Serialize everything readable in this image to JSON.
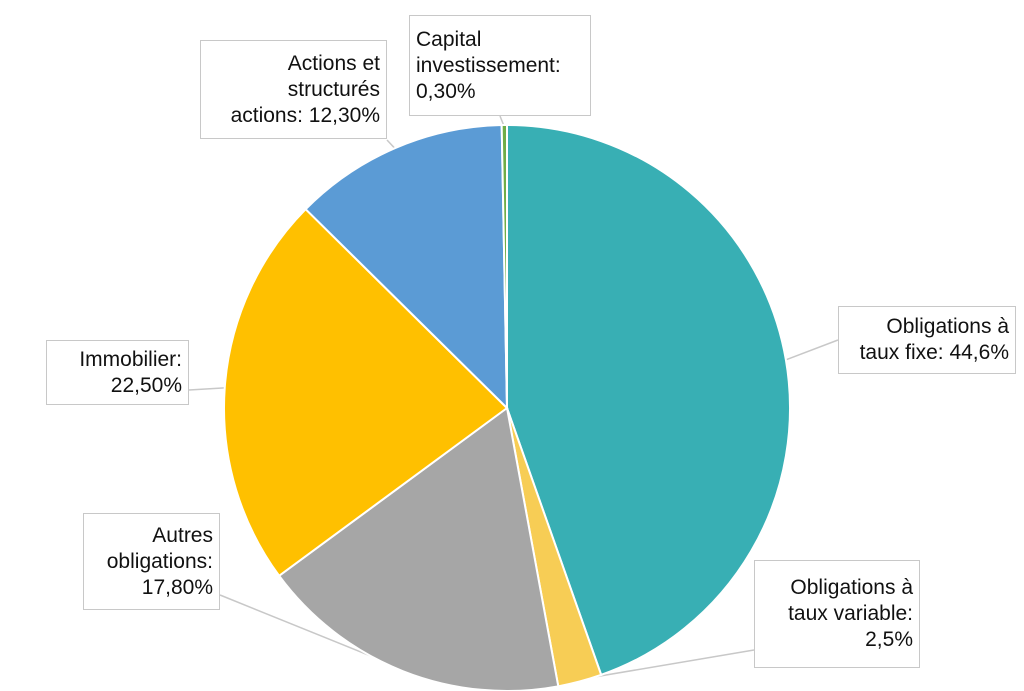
{
  "chart_data": {
    "type": "pie",
    "title": "",
    "categories": [
      "Obligations à taux fixe",
      "Obligations à taux variable",
      "Autres obligations",
      "Immobilier",
      "Actions et structurés actions",
      "Capital investissement"
    ],
    "values": [
      44.6,
      2.5,
      17.8,
      22.5,
      12.3,
      0.3
    ],
    "colors": [
      "#38afb4",
      "#f7cd55",
      "#a6a6a6",
      "#ffc000",
      "#5b9bd5",
      "#70ad47"
    ],
    "data_labels": [
      {
        "lines": [
          "Obligations à",
          "taux fixe: 44,6%"
        ]
      },
      {
        "lines": [
          "Obligations à",
          "taux variable:",
          "2,5%"
        ]
      },
      {
        "lines": [
          "Autres",
          "obligations:",
          "17,80%"
        ]
      },
      {
        "lines": [
          "Immobilier:",
          "22,50%"
        ]
      },
      {
        "lines": [
          "Actions et",
          "structurés",
          "actions: 12,30%"
        ]
      },
      {
        "lines": [
          "Capital",
          "investissement:",
          "0,30%"
        ]
      }
    ],
    "start_angle": "12 o'clock",
    "direction": "clockwise",
    "legend": "none"
  }
}
